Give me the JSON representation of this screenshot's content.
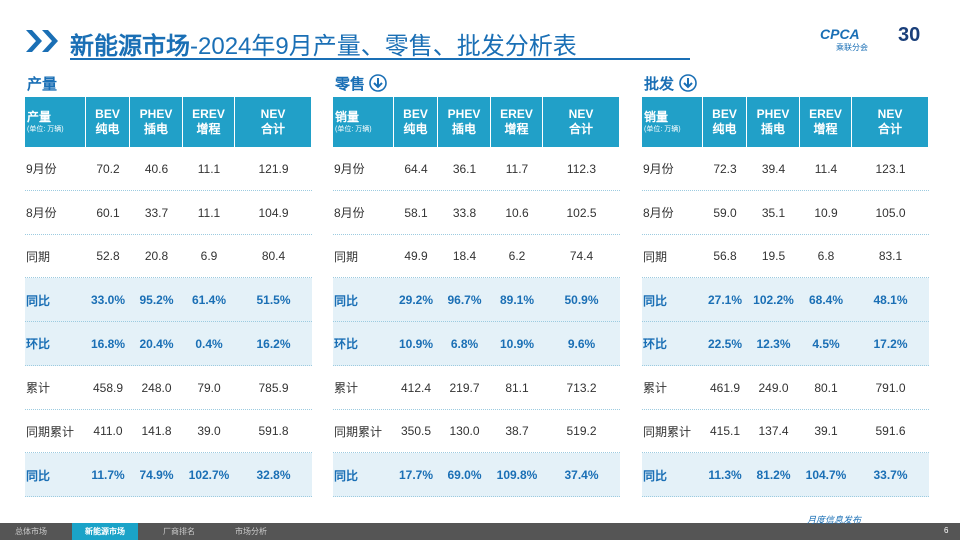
{
  "header": {
    "title_main": "新能源市场",
    "title_rest": "-2024年9月产量、零售、批发分析表",
    "logo": {
      "brand": "CPCA",
      "org": "乘联分会",
      "anniversary": "30"
    }
  },
  "tables": [
    {
      "section": "产量",
      "corner": {
        "label": "产量",
        "unit": "(单位: 万辆)"
      },
      "columns": [
        {
          "en": "BEV",
          "zh": "纯电"
        },
        {
          "en": "PHEV",
          "zh": "插电"
        },
        {
          "en": "EREV",
          "zh": "增程"
        },
        {
          "en": "NEV",
          "zh": "合计"
        }
      ],
      "rows": [
        {
          "label": "9月份",
          "cells": [
            "70.2",
            "40.6",
            "11.1",
            "121.9"
          ]
        },
        {
          "label": "8月份",
          "cells": [
            "60.1",
            "33.7",
            "11.1",
            "104.9"
          ]
        },
        {
          "label": "同期",
          "cells": [
            "52.8",
            "20.8",
            "6.9",
            "80.4"
          ]
        },
        {
          "label": "同比",
          "cells": [
            "33.0%",
            "95.2%",
            "61.4%",
            "51.5%"
          ],
          "emphasis": true
        },
        {
          "label": "环比",
          "cells": [
            "16.8%",
            "20.4%",
            "0.4%",
            "16.2%"
          ],
          "emphasis": true
        },
        {
          "label": "累计",
          "cells": [
            "458.9",
            "248.0",
            "79.0",
            "785.9"
          ]
        },
        {
          "label": "同期累计",
          "cells": [
            "411.0",
            "141.8",
            "39.0",
            "591.8"
          ]
        },
        {
          "label": "同比",
          "cells": [
            "11.7%",
            "74.9%",
            "102.7%",
            "32.8%"
          ],
          "emphasis": true
        }
      ]
    },
    {
      "section": "零售",
      "corner": {
        "label": "销量",
        "unit": "(单位: 万辆)"
      },
      "columns": [
        {
          "en": "BEV",
          "zh": "纯电"
        },
        {
          "en": "PHEV",
          "zh": "插电"
        },
        {
          "en": "EREV",
          "zh": "增程"
        },
        {
          "en": "NEV",
          "zh": "合计"
        }
      ],
      "rows": [
        {
          "label": "9月份",
          "cells": [
            "64.4",
            "36.1",
            "11.7",
            "112.3"
          ]
        },
        {
          "label": "8月份",
          "cells": [
            "58.1",
            "33.8",
            "10.6",
            "102.5"
          ]
        },
        {
          "label": "同期",
          "cells": [
            "49.9",
            "18.4",
            "6.2",
            "74.4"
          ]
        },
        {
          "label": "同比",
          "cells": [
            "29.2%",
            "96.7%",
            "89.1%",
            "50.9%"
          ],
          "emphasis": true
        },
        {
          "label": "环比",
          "cells": [
            "10.9%",
            "6.8%",
            "10.9%",
            "9.6%"
          ],
          "emphasis": true
        },
        {
          "label": "累计",
          "cells": [
            "412.4",
            "219.7",
            "81.1",
            "713.2"
          ]
        },
        {
          "label": "同期累计",
          "cells": [
            "350.5",
            "130.0",
            "38.7",
            "519.2"
          ]
        },
        {
          "label": "同比",
          "cells": [
            "17.7%",
            "69.0%",
            "109.8%",
            "37.4%"
          ],
          "emphasis": true
        }
      ]
    },
    {
      "section": "批发",
      "corner": {
        "label": "销量",
        "unit": "(单位: 万辆)"
      },
      "columns": [
        {
          "en": "BEV",
          "zh": "纯电"
        },
        {
          "en": "PHEV",
          "zh": "插电"
        },
        {
          "en": "EREV",
          "zh": "增程"
        },
        {
          "en": "NEV",
          "zh": "合计"
        }
      ],
      "rows": [
        {
          "label": "9月份",
          "cells": [
            "72.3",
            "39.4",
            "11.4",
            "123.1"
          ]
        },
        {
          "label": "8月份",
          "cells": [
            "59.0",
            "35.1",
            "10.9",
            "105.0"
          ]
        },
        {
          "label": "同期",
          "cells": [
            "56.8",
            "19.5",
            "6.8",
            "83.1"
          ]
        },
        {
          "label": "同比",
          "cells": [
            "27.1%",
            "102.2%",
            "68.4%",
            "48.1%"
          ],
          "emphasis": true
        },
        {
          "label": "环比",
          "cells": [
            "22.5%",
            "12.3%",
            "4.5%",
            "17.2%"
          ],
          "emphasis": true
        },
        {
          "label": "累计",
          "cells": [
            "461.9",
            "249.0",
            "80.1",
            "791.0"
          ]
        },
        {
          "label": "同期累计",
          "cells": [
            "415.1",
            "137.4",
            "39.1",
            "591.6"
          ]
        },
        {
          "label": "同比",
          "cells": [
            "11.3%",
            "81.2%",
            "104.7%",
            "33.7%"
          ],
          "emphasis": true
        }
      ]
    }
  ],
  "footer": {
    "tabs": [
      "总体市场",
      "新能源市场",
      "厂商排名",
      "市场分析"
    ],
    "active_tab": 1,
    "release": "月度信息发布",
    "page": "6"
  }
}
